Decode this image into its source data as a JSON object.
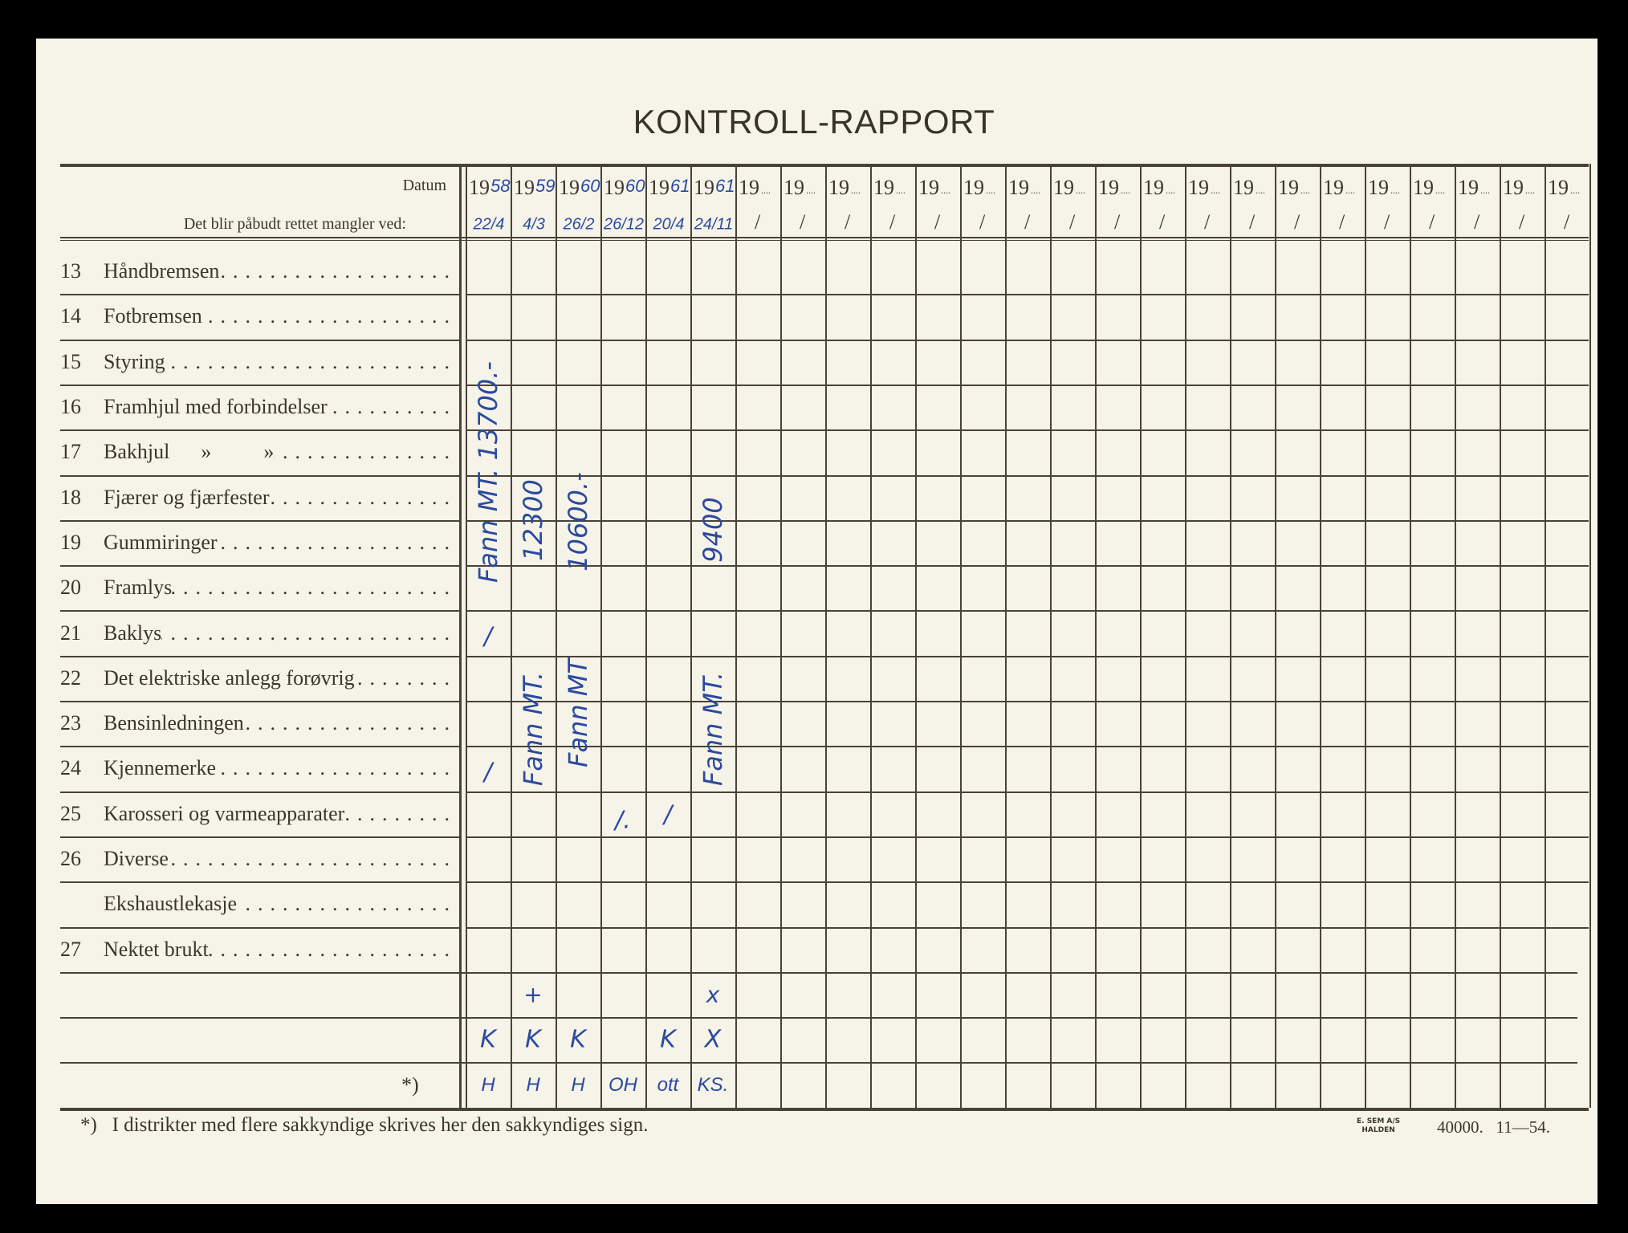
{
  "title": "KONTROLL-RAPPORT",
  "header": {
    "date_label": "Datum",
    "instruction_label": "Det blir påbudt rettet mangler ved:",
    "year_prefix": "19",
    "date_separator": "/"
  },
  "columns": [
    {
      "year": "58",
      "date": "22/4"
    },
    {
      "year": "59",
      "date": "4/3"
    },
    {
      "year": "60",
      "date": "26/2"
    },
    {
      "year": "60",
      "date": "26/12"
    },
    {
      "year": "61",
      "date": "20/4"
    },
    {
      "year": "61",
      "date": "24/11"
    }
  ],
  "column_count": 25,
  "rows": [
    {
      "number": "13",
      "label": "Håndbremsen"
    },
    {
      "number": "14",
      "label": "Fotbremsen"
    },
    {
      "number": "15",
      "label": "Styring"
    },
    {
      "number": "16",
      "label": "Framhjul med forbindelser"
    },
    {
      "number": "17",
      "label": "Bakhjul      »          »"
    },
    {
      "number": "18",
      "label": "Fjærer og fjærfester"
    },
    {
      "number": "19",
      "label": "Gummiringer"
    },
    {
      "number": "20",
      "label": "Framlys"
    },
    {
      "number": "21",
      "label": "Baklys"
    },
    {
      "number": "22",
      "label": "Det elektriske anlegg forøvrig"
    },
    {
      "number": "23",
      "label": "Bensinledningen"
    },
    {
      "number": "24",
      "label": "Kjennemerke"
    },
    {
      "number": "25",
      "label": "Karosseri og varmeapparater"
    },
    {
      "number": "26",
      "label": "Diverse"
    },
    {
      "number": "",
      "label": "Ekshaustlekasje"
    },
    {
      "number": "27",
      "label": "Nektet brukt"
    },
    {
      "number": "",
      "label": ""
    },
    {
      "number": "",
      "label": ""
    },
    {
      "number": "",
      "label": "*)"
    }
  ],
  "handwriting": {
    "col1_note": "Fann MT. 13700.-",
    "col2_amount": "12300",
    "col2_note": "Fann MT.",
    "col3_amount": "10600.-",
    "col3_note": "Fann MT",
    "col6_amount": "9400",
    "col6_note": "Fann MT.",
    "check_mark": "/",
    "row25_col4": "/.",
    "extra_row1": [
      "",
      "+",
      "",
      "",
      "",
      "x"
    ],
    "extra_row2": [
      "K",
      "K",
      "K",
      "",
      "K",
      "X"
    ],
    "signatures": [
      "H",
      "H",
      "H",
      "OH",
      "ott",
      "KS."
    ]
  },
  "footnote": "*)   I distrikter med flere sakkyndige skrives her den sakkyndiges sign.",
  "printer": {
    "line1": "E. SEM A/S",
    "line2": "HALDEN",
    "print_run": "40000.   11—54."
  },
  "ink_color": "#2a4a9e"
}
